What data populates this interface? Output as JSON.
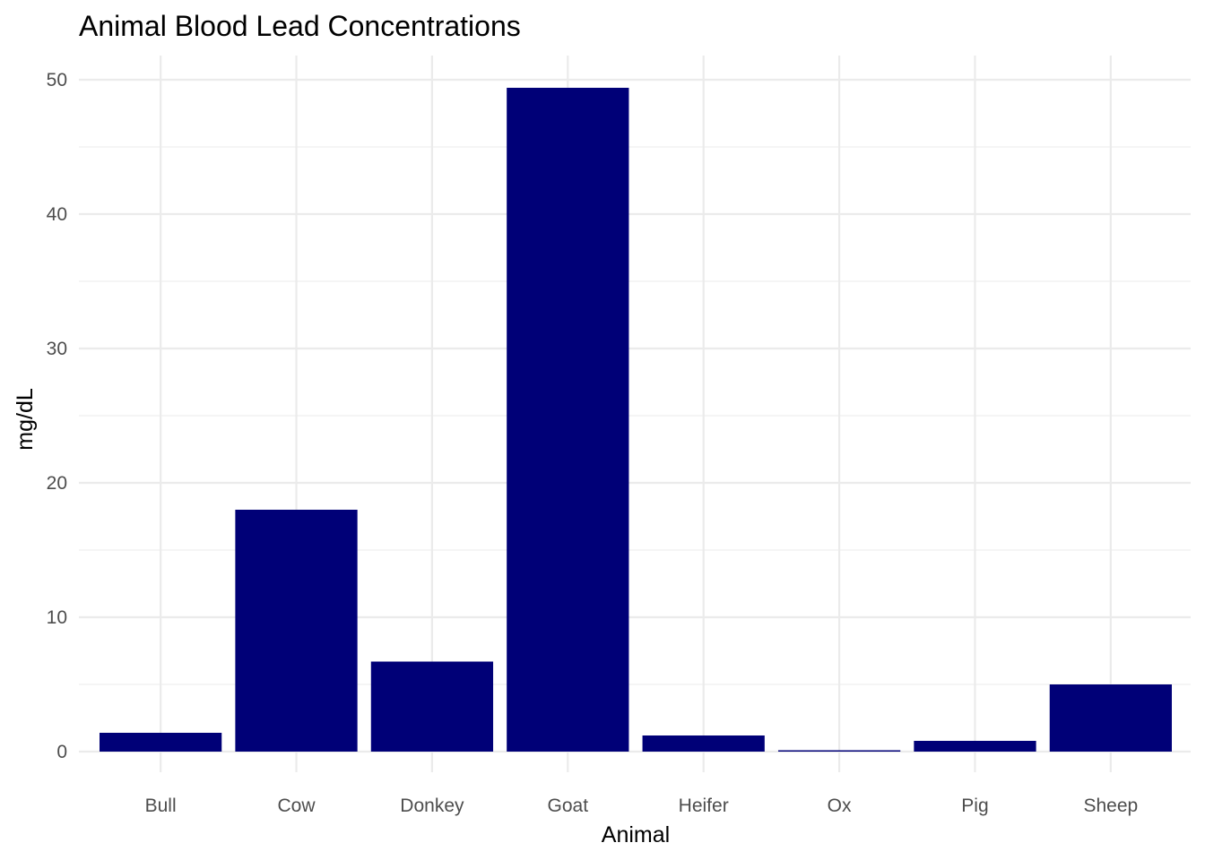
{
  "chart_data": {
    "type": "bar",
    "title": "Animal Blood Lead Concentrations",
    "xlabel": "Animal",
    "ylabel": "mg/dL",
    "categories": [
      "Bull",
      "Cow",
      "Donkey",
      "Goat",
      "Heifer",
      "Ox",
      "Pig",
      "Sheep"
    ],
    "values": [
      1.4,
      18.0,
      6.7,
      49.4,
      1.2,
      0.1,
      0.8,
      5.0
    ],
    "ylim": [
      0,
      50
    ],
    "yticks": [
      0,
      10,
      20,
      30,
      40,
      50
    ],
    "bar_color": "#000077",
    "grid": true,
    "legend": "none"
  }
}
